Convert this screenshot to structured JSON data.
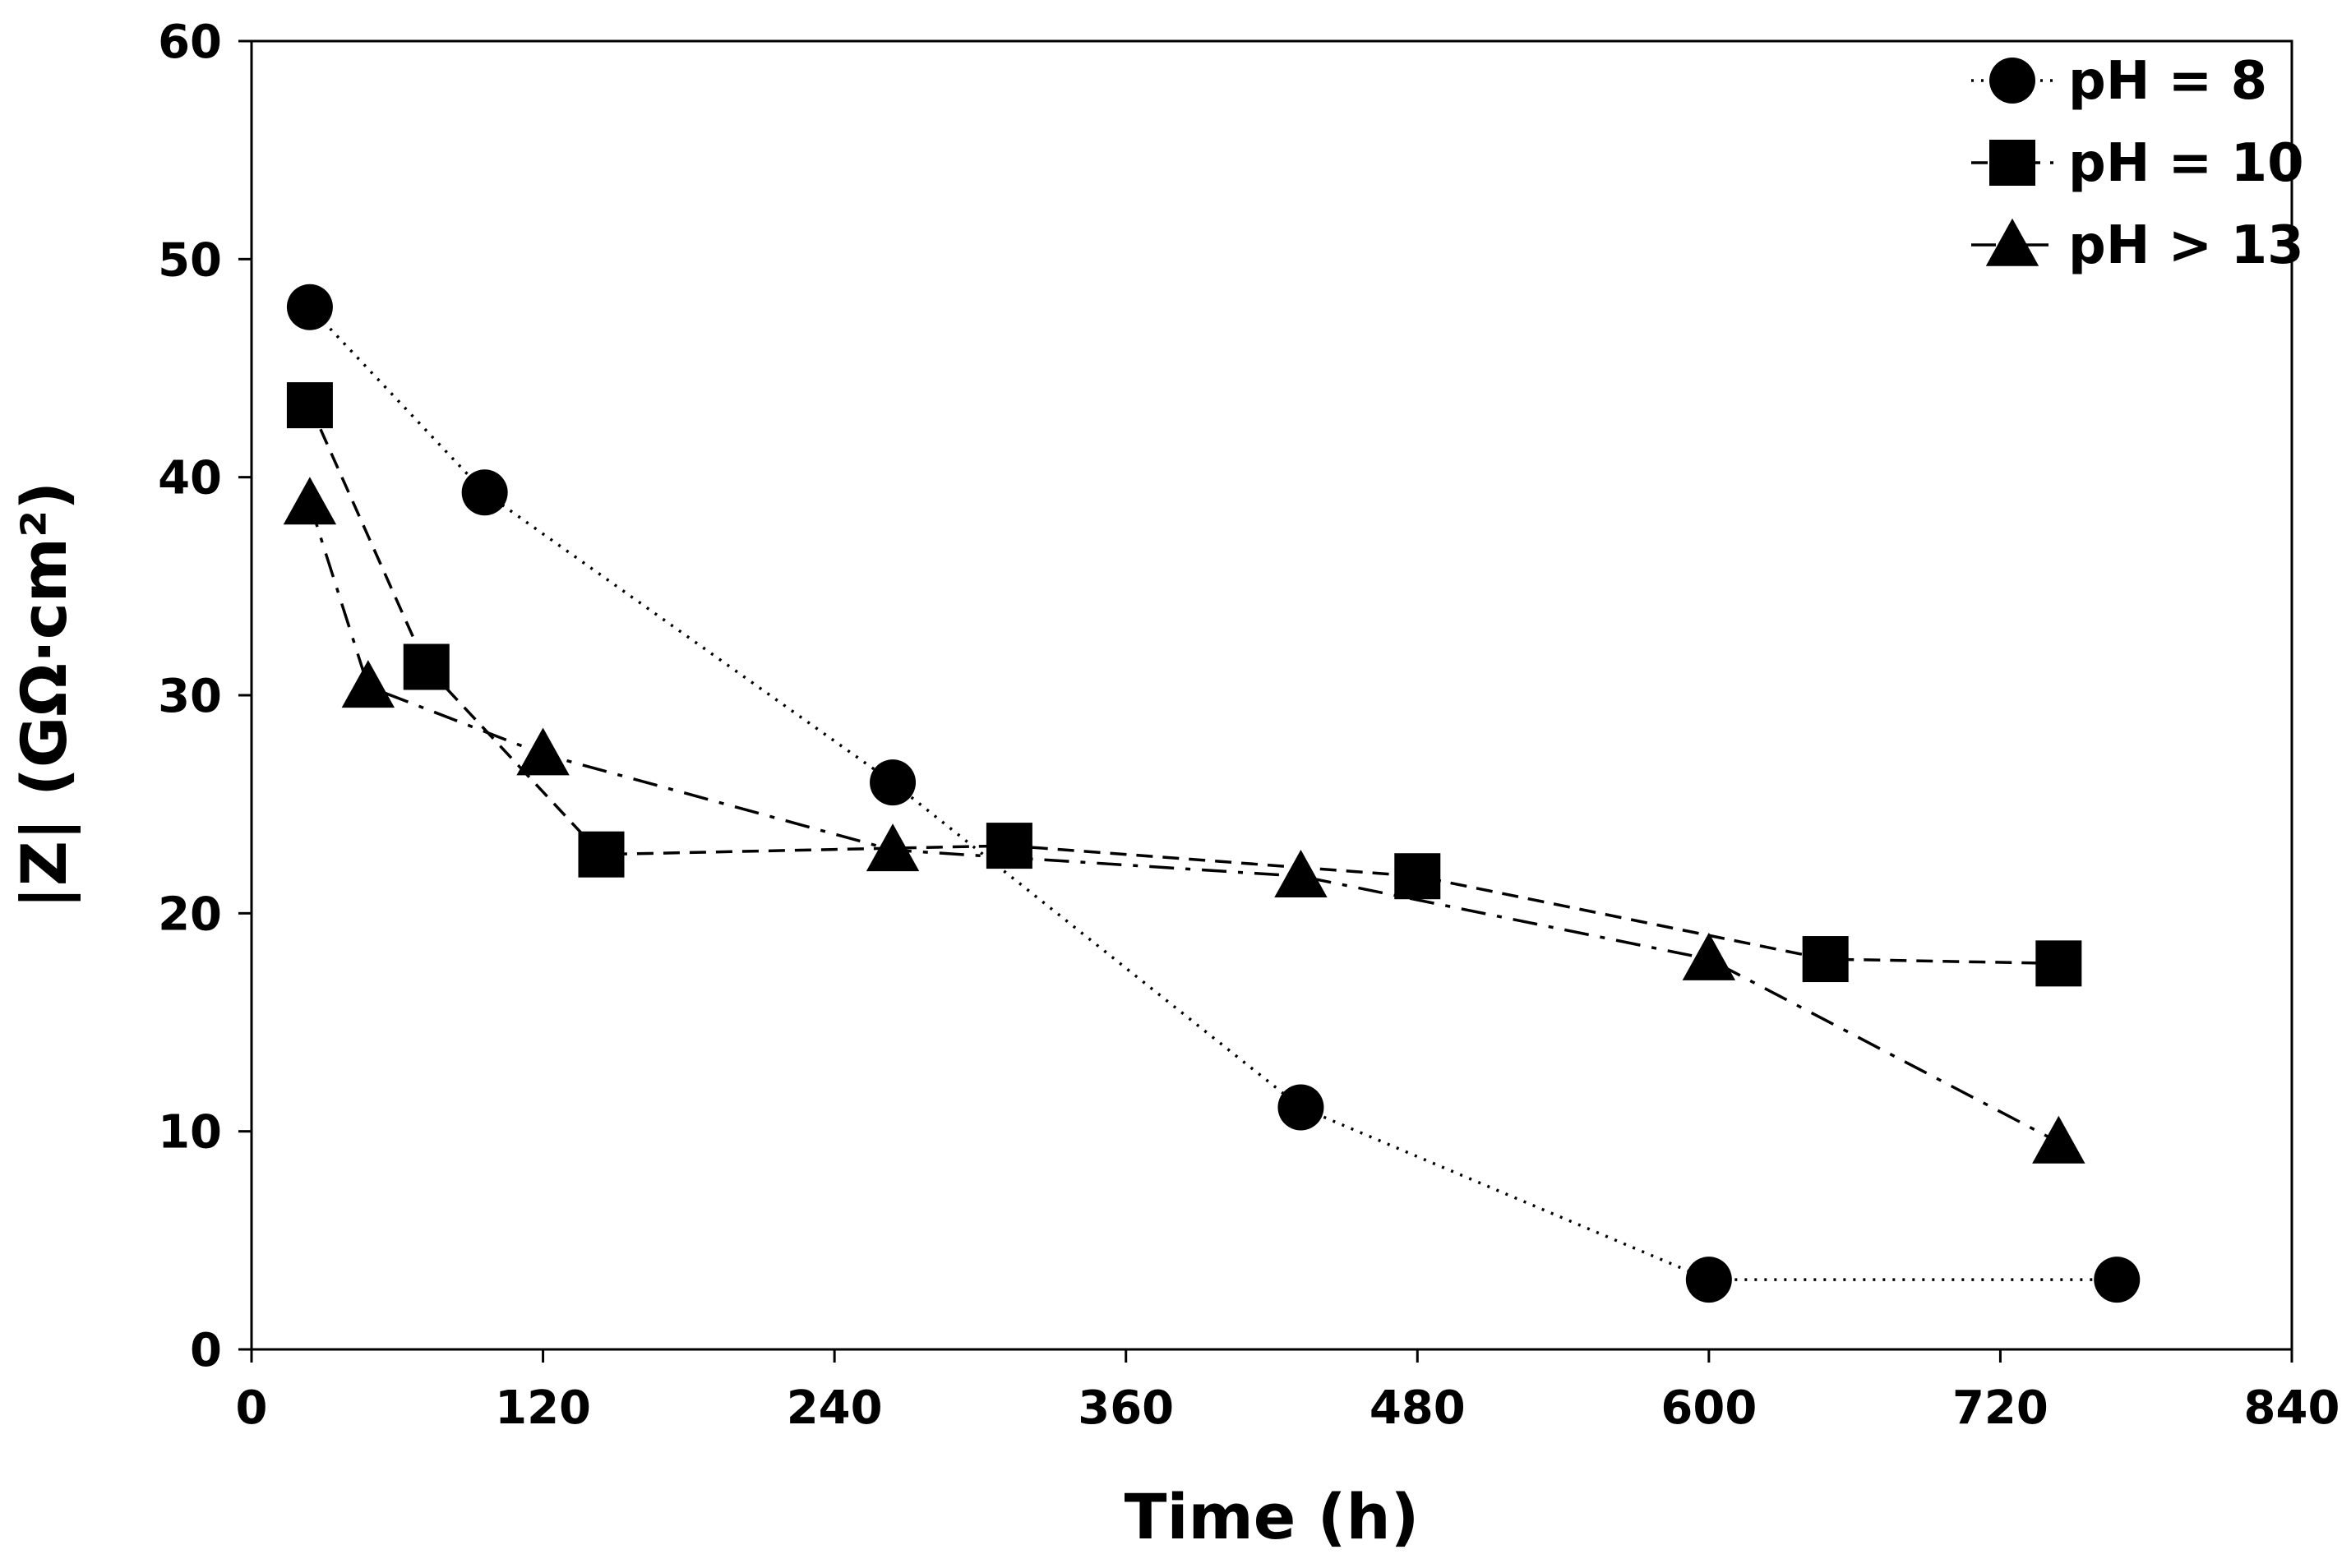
{
  "chart_data": {
    "type": "line",
    "title": "",
    "xlabel": "Time (h)",
    "ylabel": "|Z| (GΩ·cm²)",
    "xlim": [
      0,
      840
    ],
    "ylim": [
      0,
      60
    ],
    "xticks": [
      0,
      120,
      240,
      360,
      480,
      600,
      720,
      840
    ],
    "yticks": [
      0,
      10,
      20,
      30,
      40,
      50,
      60
    ],
    "grid": false,
    "legend_position": "top-right",
    "series": [
      {
        "name": "pH = 8",
        "marker": "circle",
        "line_style": "dotted",
        "x": [
          24,
          96,
          264,
          432,
          600,
          768
        ],
        "y": [
          47.8,
          39.3,
          26.0,
          11.1,
          3.2,
          3.2
        ]
      },
      {
        "name": "pH = 10",
        "marker": "square",
        "line_style": "dashed",
        "x": [
          24,
          72,
          144,
          312,
          480,
          648,
          744
        ],
        "y": [
          43.3,
          31.3,
          22.7,
          23.1,
          21.7,
          17.9,
          17.7
        ]
      },
      {
        "name": "pH > 13",
        "marker": "triangle",
        "line_style": "dash-dot",
        "x": [
          24,
          48,
          120,
          264,
          432,
          600,
          744
        ],
        "y": [
          38.8,
          30.4,
          27.3,
          22.9,
          21.7,
          17.9,
          9.5
        ]
      }
    ]
  }
}
